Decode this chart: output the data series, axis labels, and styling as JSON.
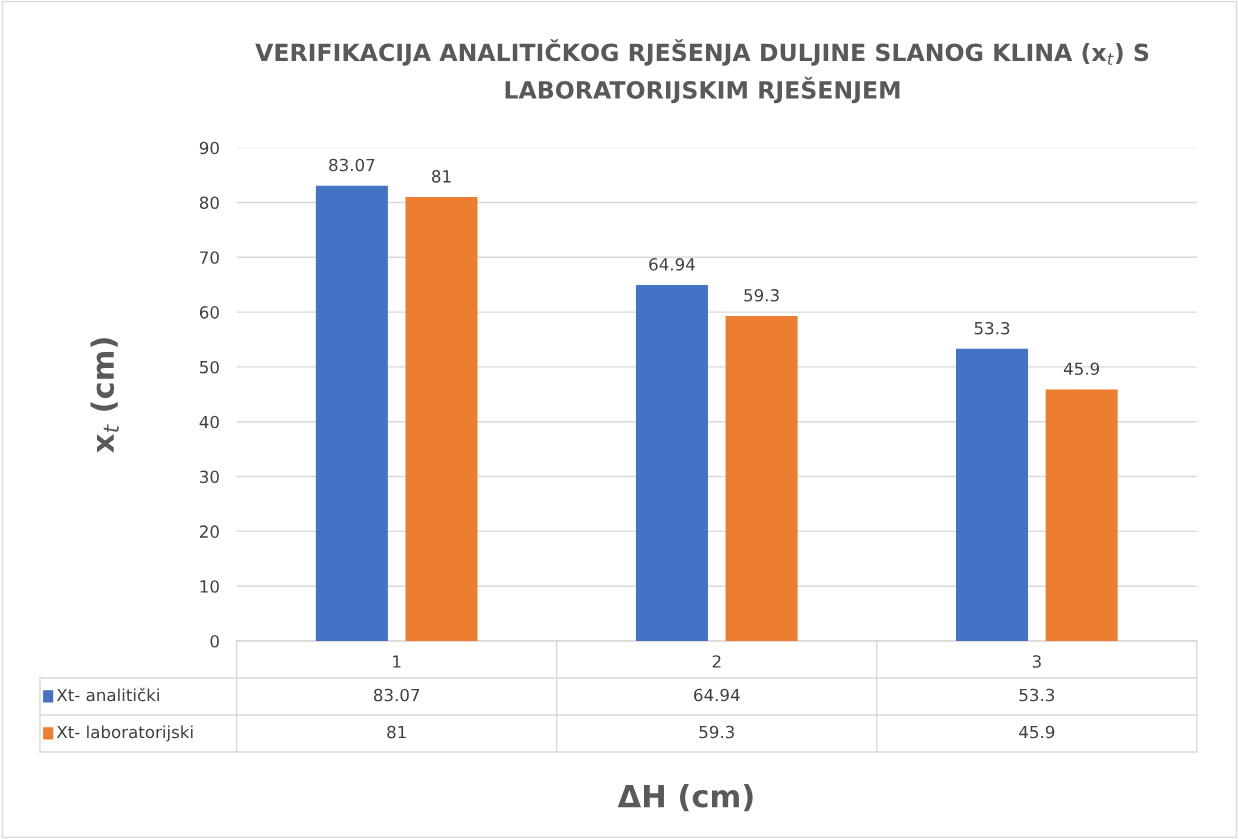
{
  "chart_data": {
    "type": "bar",
    "title": "VERIFIKACIJA ANALITIČKOG RJEŠENJA DULJINE SLANOG KLINA (x$_{t}$) S LABORATORIJSKIM RJEŠENJEM",
    "xlabel": "ΔH (cm)",
    "ylabel": "x$_{t}$ (cm)",
    "categories": [
      "1",
      "2",
      "3"
    ],
    "series": [
      {
        "name": "Xt- analitički",
        "color": "#4472c4",
        "values": [
          83.07,
          64.94,
          53.3
        ],
        "value_labels": [
          "83.07",
          "64.94",
          "53.3"
        ]
      },
      {
        "name": "Xt- laboratorijski",
        "color": "#ed7d31",
        "values": [
          81,
          59.3,
          45.9
        ],
        "value_labels": [
          "81",
          "59.3",
          "45.9"
        ]
      }
    ],
    "legend": "bottom left",
    "annotations": [
      "83.07",
      "64.94",
      "53.3",
      "81",
      "59.3",
      "45.9"
    ],
    "ylim": [
      0,
      90
    ],
    "yticks": [
      0,
      10,
      20,
      30,
      40,
      50,
      60,
      70,
      80,
      90
    ],
    "grid": "y",
    "data_labels": true
  }
}
